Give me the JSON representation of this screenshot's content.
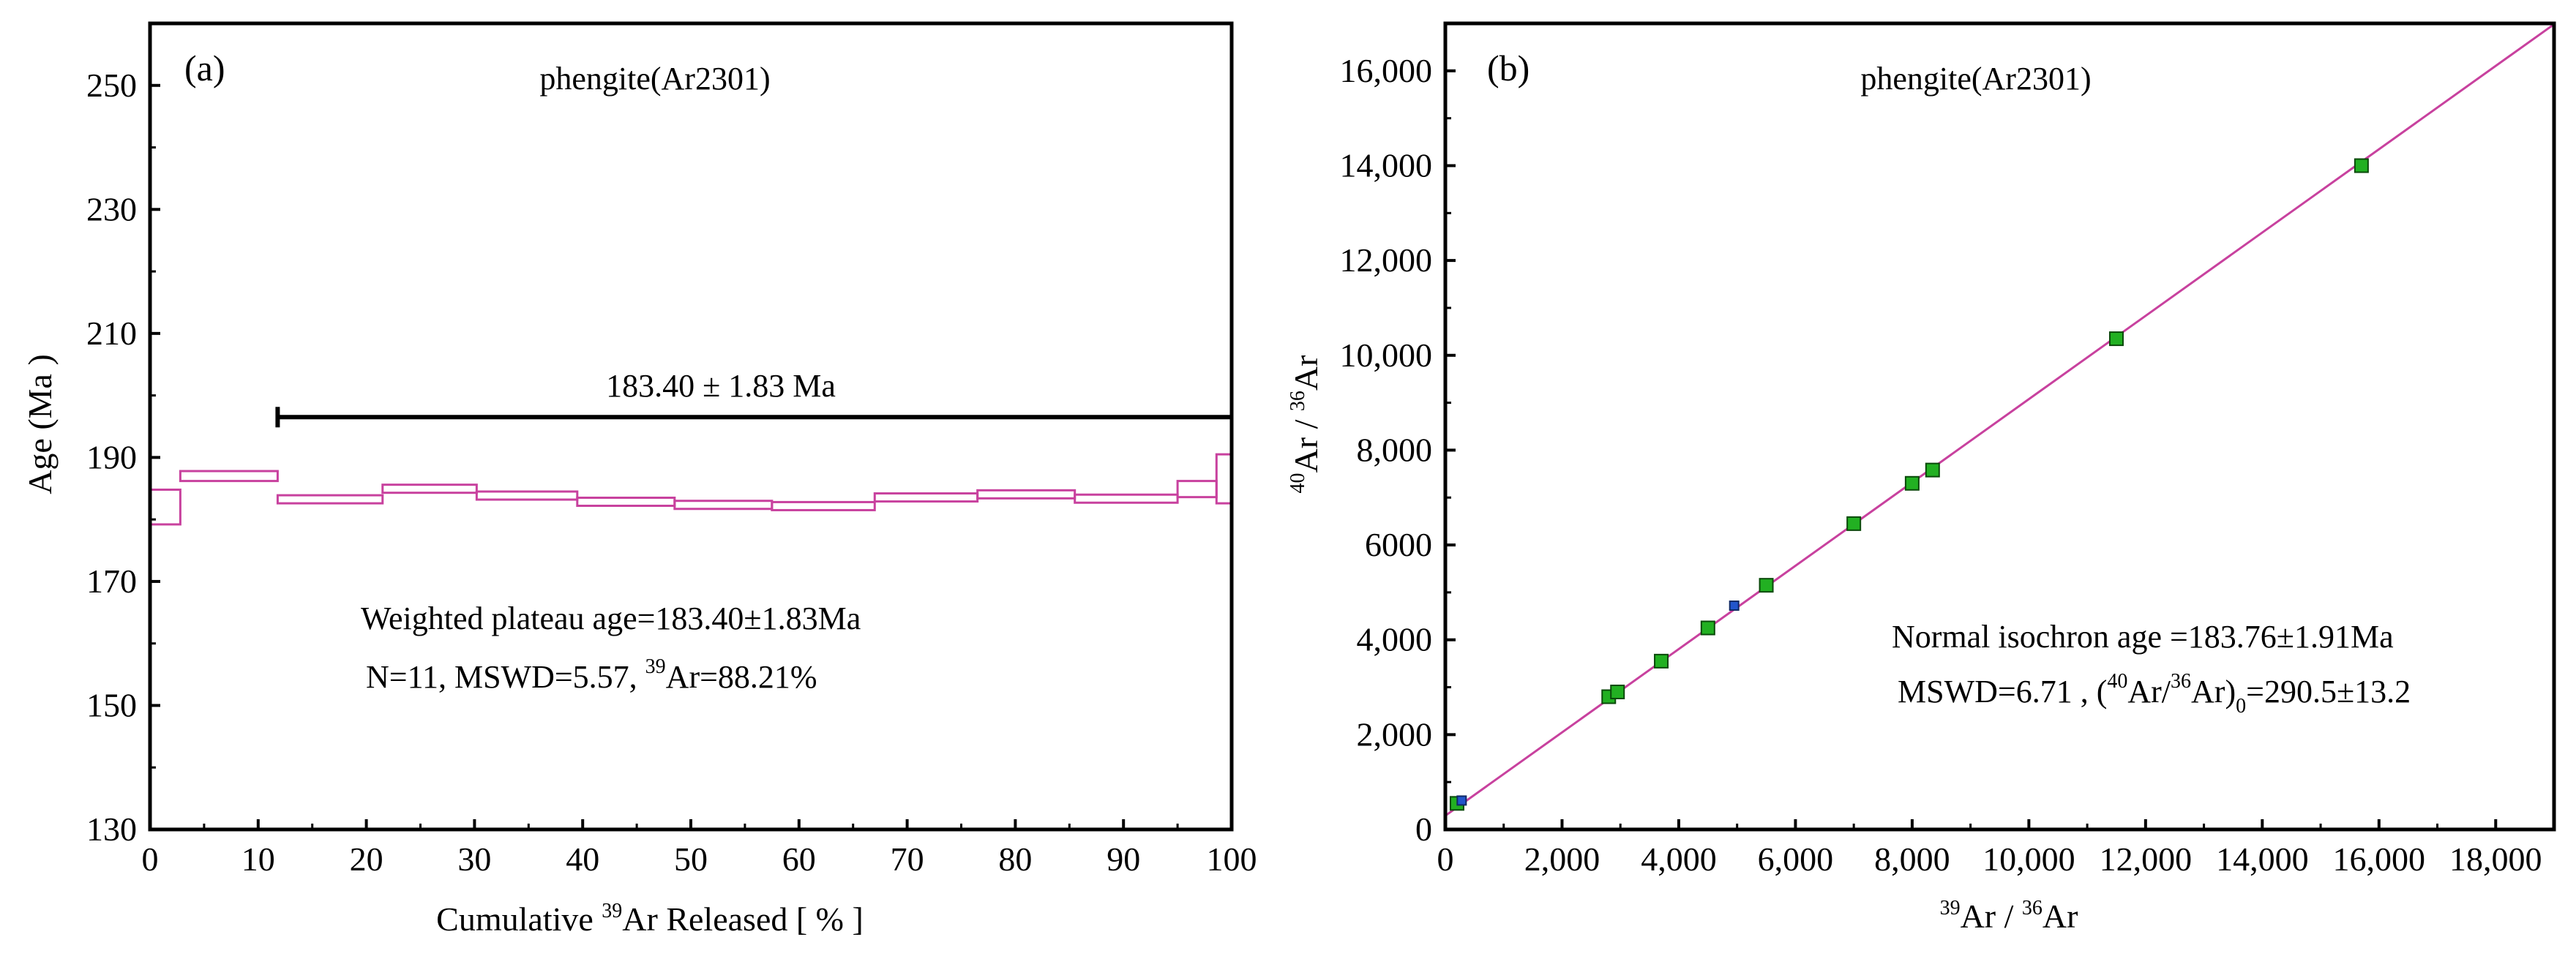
{
  "chart_data": [
    {
      "type": "step",
      "panel_label": "(a)",
      "title": "phengite(Ar2301)",
      "xlabel_pre": "Cumulative ",
      "xlabel_sup": "39",
      "xlabel_post": "Ar Released [ % ]",
      "ylabel": "Age (Ma )",
      "xlim": [
        0,
        100
      ],
      "ylim": [
        130,
        260
      ],
      "xticks": [
        "0",
        "10",
        "20",
        "30",
        "40",
        "50",
        "60",
        "70",
        "80",
        "90",
        "100"
      ],
      "yticks": [
        "130",
        "150",
        "170",
        "190",
        "210",
        "230",
        "250"
      ],
      "steps": [
        {
          "x0": 0,
          "x1": 2.8,
          "low": 179.2,
          "high": 184.8
        },
        {
          "x0": 2.8,
          "x1": 11.8,
          "low": 186.2,
          "high": 187.8
        },
        {
          "x0": 11.8,
          "x1": 21.5,
          "low": 182.6,
          "high": 183.9
        },
        {
          "x0": 21.5,
          "x1": 30.2,
          "low": 184.3,
          "high": 185.6
        },
        {
          "x0": 30.2,
          "x1": 39.5,
          "low": 183.2,
          "high": 184.5
        },
        {
          "x0": 39.5,
          "x1": 48.5,
          "low": 182.2,
          "high": 183.5
        },
        {
          "x0": 48.5,
          "x1": 57.5,
          "low": 181.7,
          "high": 183.0
        },
        {
          "x0": 57.5,
          "x1": 67.0,
          "low": 181.5,
          "high": 182.8
        },
        {
          "x0": 67.0,
          "x1": 76.5,
          "low": 182.9,
          "high": 184.2
        },
        {
          "x0": 76.5,
          "x1": 85.5,
          "low": 183.4,
          "high": 184.7
        },
        {
          "x0": 85.5,
          "x1": 95.0,
          "low": 182.7,
          "high": 184.0
        },
        {
          "x0": 95.0,
          "x1": 98.6,
          "low": 183.6,
          "high": 186.2
        },
        {
          "x0": 98.6,
          "x1": 100,
          "low": 182.6,
          "high": 190.5
        }
      ],
      "plateau": {
        "x0": 11.8,
        "x1": 100,
        "y": 196.5,
        "label": "183.40 ± 1.83 Ma"
      },
      "annotation_line1": "Weighted plateau age=183.40±1.83Ma",
      "annotation_line2_pre": "N=11, MSWD=5.57, ",
      "annotation_line2_sup": "39",
      "annotation_line2_post": "Ar=88.21%",
      "step_color": "#c8419e"
    },
    {
      "type": "scatter",
      "panel_label": "(b)",
      "title": "phengite(Ar2301)",
      "xlabel_sup1": "39",
      "xlabel_mid": "Ar / ",
      "xlabel_sup2": "36",
      "xlabel_post": "Ar",
      "ylabel_sup1": "40",
      "ylabel_mid": "Ar / ",
      "ylabel_sup2": "36",
      "ylabel_post": "Ar",
      "xlim": [
        0,
        19000
      ],
      "ylim": [
        0,
        17000
      ],
      "xticks": [
        {
          "v": 0,
          "label": "0"
        },
        {
          "v": 2000,
          "label": "2,000"
        },
        {
          "v": 4000,
          "label": "4,000"
        },
        {
          "v": 6000,
          "label": "6,000"
        },
        {
          "v": 8000,
          "label": "8,000"
        },
        {
          "v": 10000,
          "label": "10,000"
        },
        {
          "v": 12000,
          "label": "12,000"
        },
        {
          "v": 14000,
          "label": "14,000"
        },
        {
          "v": 16000,
          "label": "16,000"
        },
        {
          "v": 18000,
          "label": "18,000"
        }
      ],
      "yticks": [
        {
          "v": 0,
          "label": "0"
        },
        {
          "v": 2000,
          "label": "2,000"
        },
        {
          "v": 4000,
          "label": "4,000"
        },
        {
          "v": 6000,
          "label": "6000"
        },
        {
          "v": 8000,
          "label": "8,000"
        },
        {
          "v": 10000,
          "label": "10,000"
        },
        {
          "v": 12000,
          "label": "12,000"
        },
        {
          "v": 14000,
          "label": "14,000"
        },
        {
          "v": 16000,
          "label": "16,000"
        }
      ],
      "points_included": [
        {
          "x": 200,
          "y": 550
        },
        {
          "x": 2800,
          "y": 2800
        },
        {
          "x": 2950,
          "y": 2900
        },
        {
          "x": 3700,
          "y": 3550
        },
        {
          "x": 4500,
          "y": 4250
        },
        {
          "x": 5500,
          "y": 5150
        },
        {
          "x": 7000,
          "y": 6450
        },
        {
          "x": 8000,
          "y": 7300
        },
        {
          "x": 8350,
          "y": 7580
        },
        {
          "x": 11500,
          "y": 10350
        },
        {
          "x": 15700,
          "y": 14000
        }
      ],
      "points_excluded": [
        {
          "x": 280,
          "y": 610
        },
        {
          "x": 4950,
          "y": 4720
        }
      ],
      "isochron": {
        "intercept": 290.5,
        "slope": 0.8785
      },
      "annotation_line1": "Normal isochron age =183.76±1.91Ma",
      "annotation_line2_pre": "MSWD=6.71 , (",
      "annotation_line2_sup1": "40",
      "annotation_line2_mid": "Ar/",
      "annotation_line2_sup2": "36",
      "annotation_line2_close": "Ar)",
      "annotation_line2_sub": "0",
      "annotation_line2_post": "=290.5±13.2",
      "line_color": "#c8419e",
      "point_color": "#22b022",
      "excluded_color": "#2255cc"
    }
  ]
}
